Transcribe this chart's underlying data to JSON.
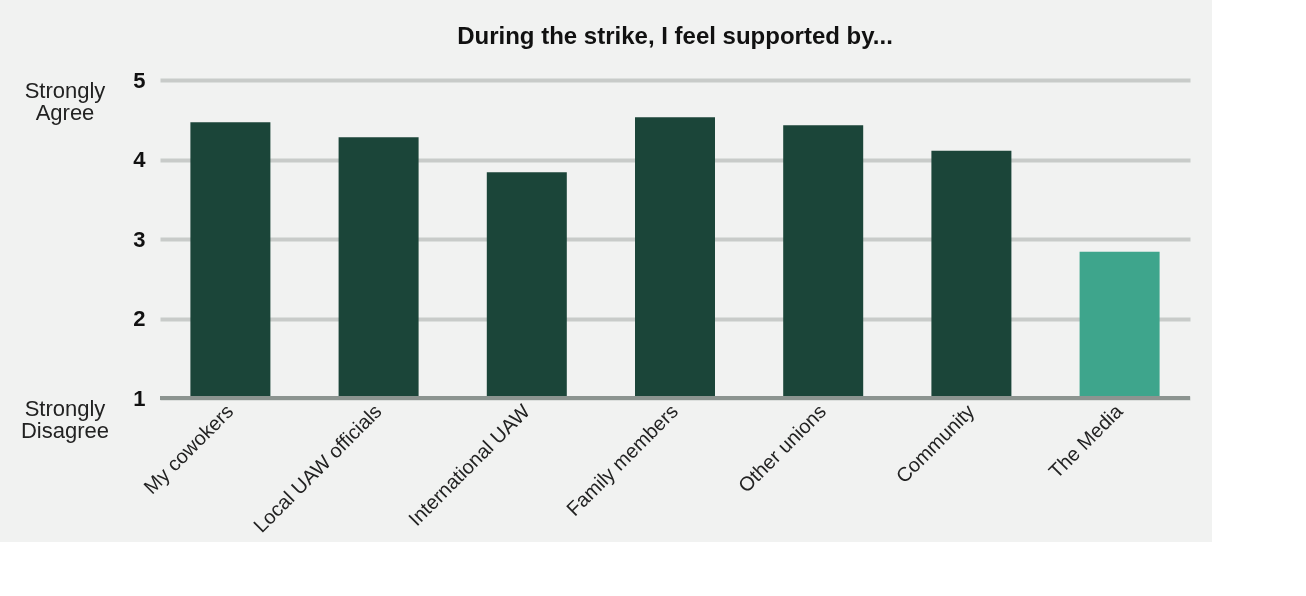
{
  "chart_data": {
    "type": "bar",
    "title": "During the strike, I feel supported by...",
    "categories": [
      "My cowokers",
      "Local UAW officials",
      "International UAW",
      "Family members",
      "Other unions",
      "Community",
      "The Media"
    ],
    "values": [
      4.47,
      4.28,
      3.84,
      4.53,
      4.43,
      4.11,
      2.84
    ],
    "colors": [
      "#1b4539",
      "#1b4539",
      "#1b4539",
      "#1b4539",
      "#1b4539",
      "#1b4539",
      "#3ea58c"
    ],
    "ylim": [
      1,
      5
    ],
    "yticks": [
      1,
      2,
      3,
      4,
      5
    ],
    "grid": "y",
    "annotations": [
      "Strongly Agree",
      "Strongly Disagree"
    ]
  }
}
